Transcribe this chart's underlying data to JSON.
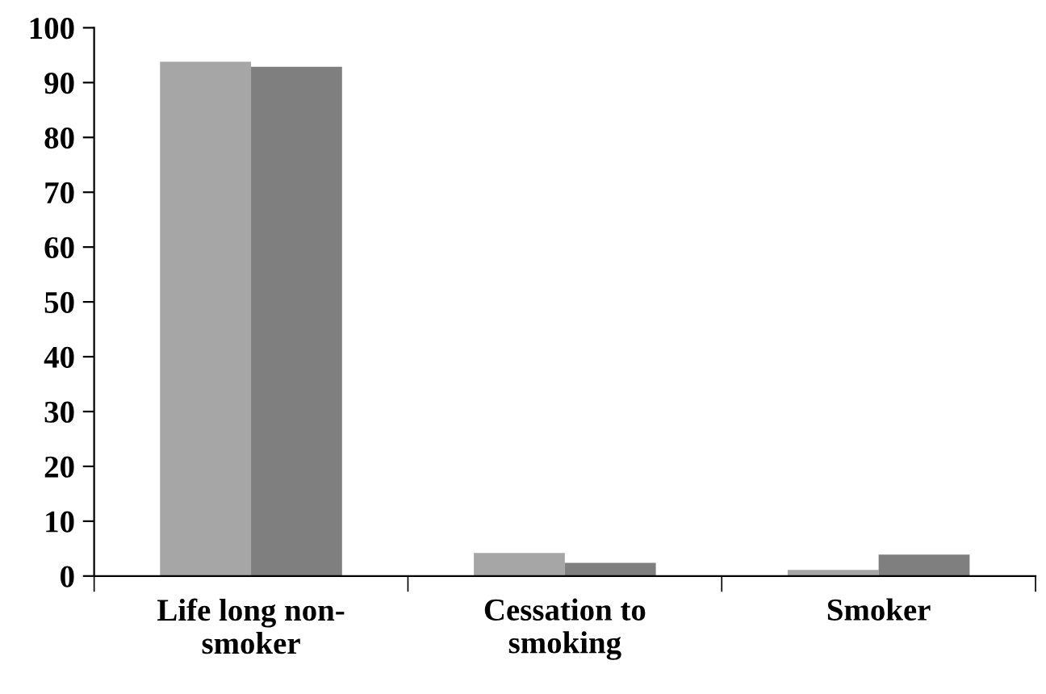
{
  "chart_data": {
    "type": "bar",
    "categories": [
      "Life long non-\nsmoker",
      "Cessation to\nsmoking",
      "Smoker"
    ],
    "series": [
      {
        "color": "#a6a6a6",
        "values": [
          93.8,
          4.2,
          1.1
        ]
      },
      {
        "color": "#7f7f7f",
        "values": [
          92.9,
          2.4,
          3.9
        ]
      }
    ],
    "ylim": [
      0,
      100
    ],
    "yticks": [
      0,
      10,
      20,
      30,
      40,
      50,
      60,
      70,
      80,
      90,
      100
    ],
    "grid": false,
    "legend": false
  }
}
